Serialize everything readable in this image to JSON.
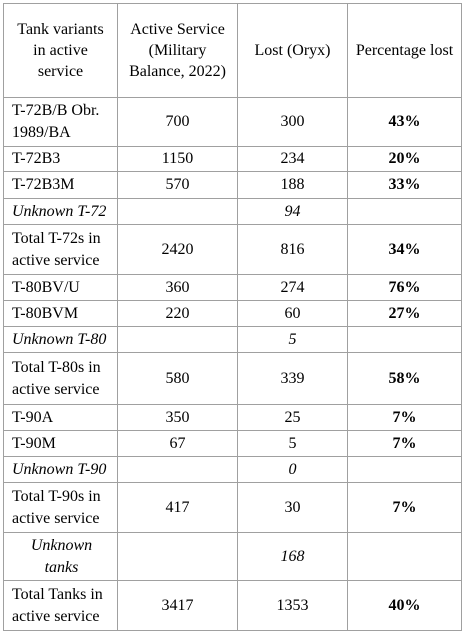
{
  "table": {
    "header": [
      "Tank variants in active service",
      "Active Service (Military Balance, 2022)",
      "Lost (Oryx)",
      "Percentage lost"
    ],
    "rows": [
      [
        "T-72B/B Obr. 1989/BA",
        700,
        300,
        "43%"
      ],
      [
        "T-72B3",
        1150,
        234,
        "20%"
      ],
      [
        "T-72B3M",
        570,
        188,
        "33%"
      ],
      [
        "Unknown T-72",
        null,
        94,
        null
      ],
      [
        "Total T-72s in active service",
        2420,
        816,
        "34%"
      ],
      [
        "T-80BV/U",
        360,
        274,
        "76%"
      ],
      [
        "T-80BVM",
        220,
        60,
        "27%"
      ],
      [
        "Unknown T-80",
        null,
        5,
        null
      ],
      [
        "Total T-80s in active service",
        580,
        339,
        "58%"
      ],
      [
        "T-90A",
        350,
        25,
        "7%"
      ],
      [
        "T-90M",
        67,
        5,
        "7%"
      ],
      [
        "Unknown T-90",
        null,
        0,
        null
      ],
      [
        "Total T-90s in active service",
        417,
        30,
        "7%"
      ],
      [
        "Unknown tanks",
        null,
        168,
        null
      ],
      [
        "Total Tanks in active service",
        3417,
        1353,
        "40%"
      ]
    ]
  }
}
